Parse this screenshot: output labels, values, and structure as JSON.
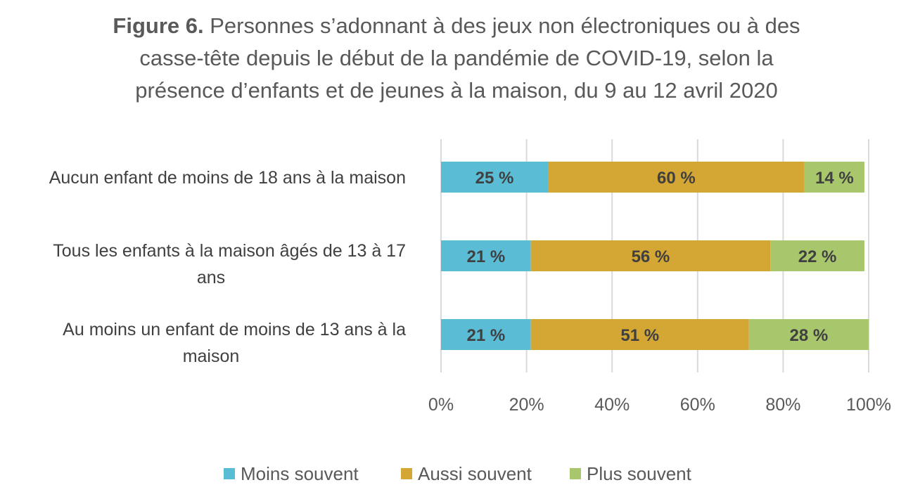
{
  "title": {
    "prefix": "Figure 6.",
    "line1": " Personnes s’adonnant à des jeux non électroniques ou à des",
    "line2": "casse-tête depuis le début de la pandémie de COVID-19, selon la",
    "line3": "présence d’enfants et de jeunes à la maison, du 9 au 12 avril 2020"
  },
  "chart_data": {
    "type": "bar",
    "orientation": "horizontal",
    "stacked": true,
    "categories": [
      [
        "Aucun enfant de moins de 18 ans à la maison"
      ],
      [
        "Tous les enfants à la maison âgés de 13 à 17",
        "ans"
      ],
      [
        "Au moins un enfant de moins de 13 ans à la",
        "maison"
      ]
    ],
    "series": [
      {
        "name": "Moins souvent",
        "color": "#5bbcd6",
        "values": [
          25,
          21,
          21
        ],
        "labels": [
          "25 %",
          "21 %",
          "21 %"
        ]
      },
      {
        "name": "Aussi souvent",
        "color": "#d4a634",
        "values": [
          60,
          56,
          51
        ],
        "labels": [
          "60 %",
          "56 %",
          "51 %"
        ]
      },
      {
        "name": "Plus souvent",
        "color": "#a8c66c",
        "values": [
          14,
          22,
          28
        ],
        "labels": [
          "14 %",
          "22 %",
          "28 %"
        ]
      }
    ],
    "xlim": [
      0,
      100
    ],
    "xticks": [
      0,
      20,
      40,
      60,
      80,
      100
    ],
    "xtick_labels": [
      "0%",
      "20%",
      "40%",
      "60%",
      "80%",
      "100%"
    ],
    "grid": true,
    "legend_position": "bottom"
  }
}
